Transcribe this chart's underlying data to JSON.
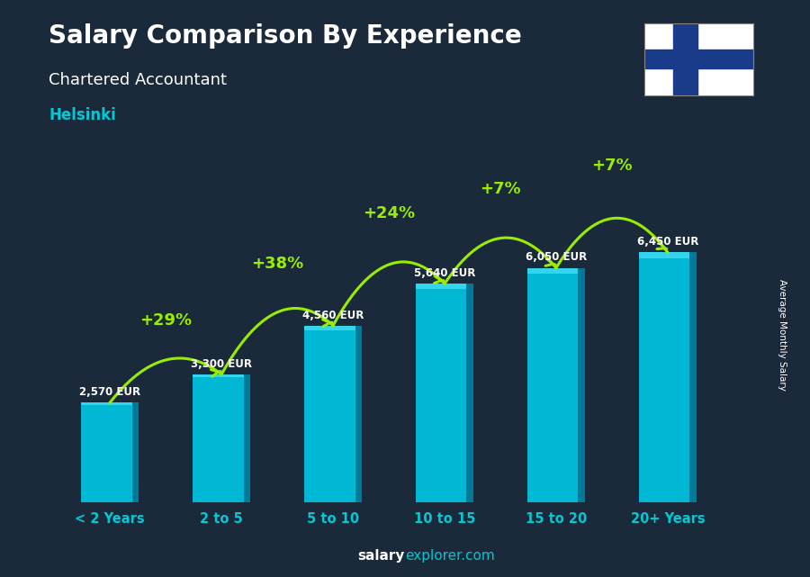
{
  "title": "Salary Comparison By Experience",
  "subtitle": "Chartered Accountant",
  "city": "Helsinki",
  "ylabel": "Average Monthly Salary",
  "xlabel_labels": [
    "< 2 Years",
    "2 to 5",
    "5 to 10",
    "10 to 15",
    "15 to 20",
    "20+ Years"
  ],
  "values": [
    2570,
    3300,
    4560,
    5640,
    6050,
    6450
  ],
  "value_labels": [
    "2,570 EUR",
    "3,300 EUR",
    "4,560 EUR",
    "5,640 EUR",
    "6,050 EUR",
    "6,450 EUR"
  ],
  "pct_labels": [
    "+29%",
    "+38%",
    "+24%",
    "+7%",
    "+7%"
  ],
  "bar_color_main": "#00b8d4",
  "bar_color_dark": "#007a9a",
  "bar_color_light": "#33d4ee",
  "background_color": "#1a2a3a",
  "title_color": "#ffffff",
  "subtitle_color": "#ffffff",
  "city_color": "#00c8d4",
  "pct_color": "#99ee00",
  "value_label_color": "#ffffff",
  "tick_color": "#00c8d4",
  "footer_salary_color": "#ffffff",
  "footer_explorer_color": "#00c8d4",
  "ylabel_color": "#ffffff",
  "flag_cross_color": "#1a3a8a",
  "ylim": [
    0,
    8500
  ],
  "bar_width": 0.52
}
